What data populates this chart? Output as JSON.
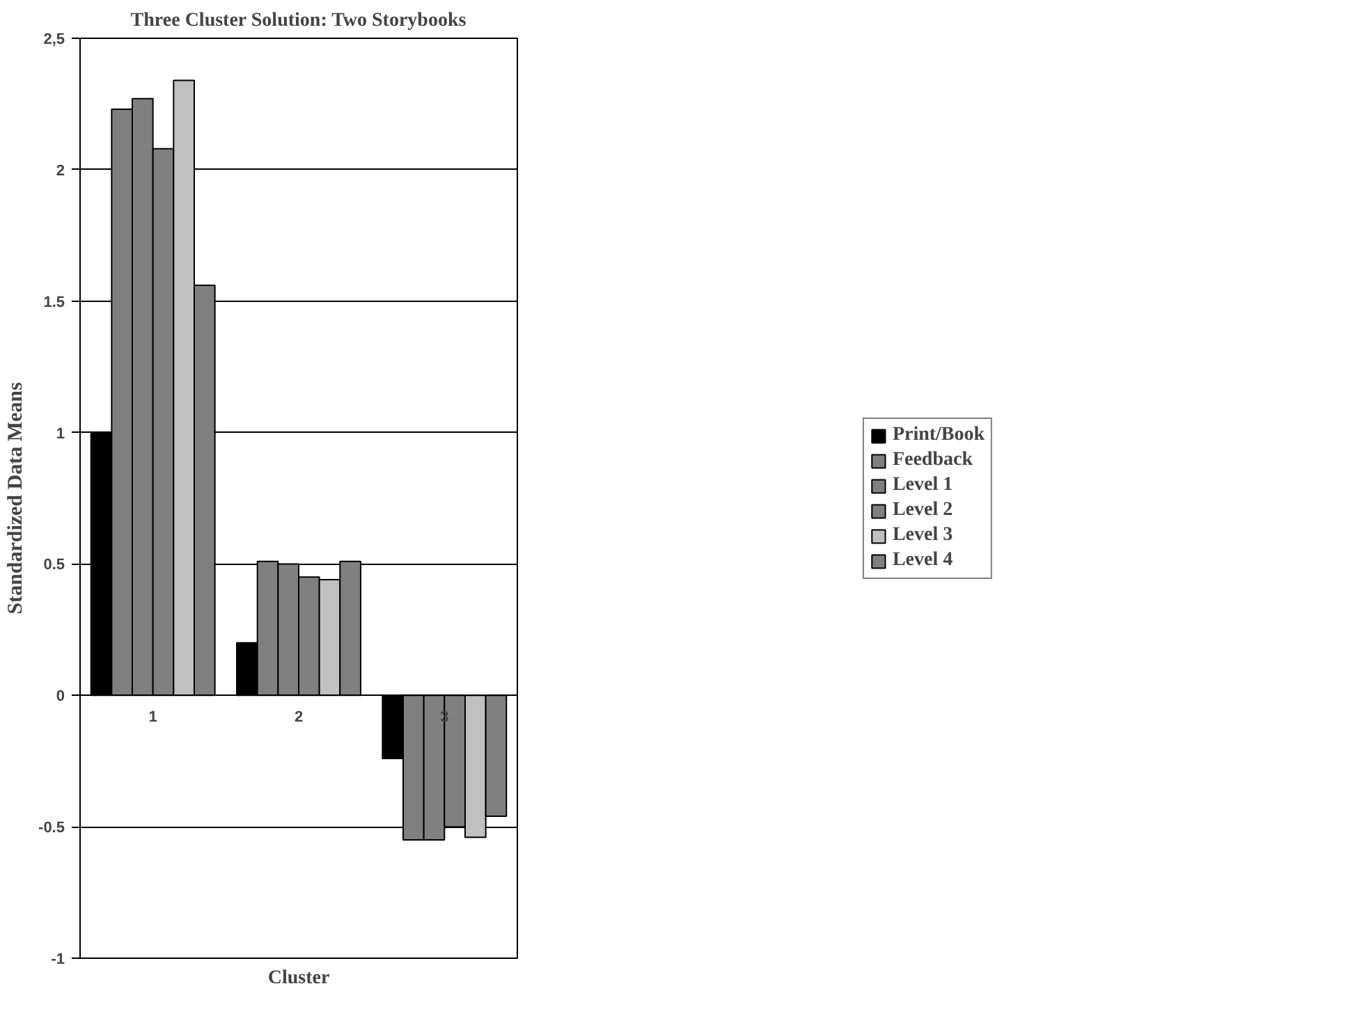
{
  "chart_data": {
    "type": "bar",
    "title": "Three Cluster Solution: Two Storybooks",
    "xlabel": "Cluster",
    "ylabel": "Standardized Data Means",
    "categories": [
      "1",
      "2",
      "3"
    ],
    "series": [
      {
        "name": "Print/Book",
        "color": "#000000",
        "values": [
          1.0,
          0.2,
          -0.24
        ]
      },
      {
        "name": "Feedback",
        "color": "#808080",
        "values": [
          2.23,
          0.51,
          -0.55
        ]
      },
      {
        "name": "Level 1",
        "color": "#808080",
        "values": [
          2.27,
          0.5,
          -0.55
        ]
      },
      {
        "name": "Level 2",
        "color": "#808080",
        "values": [
          2.08,
          0.45,
          -0.5
        ]
      },
      {
        "name": "Level 3",
        "color": "#c0c0c0",
        "values": [
          2.34,
          0.44,
          -0.54
        ]
      },
      {
        "name": "Level 4",
        "color": "#808080",
        "values": [
          1.56,
          0.51,
          -0.46
        ]
      }
    ],
    "ylim": [
      -1,
      2.5
    ],
    "yticks": [
      -1,
      {
        "value": -0.5,
        "label": "-0.5"
      },
      0,
      {
        "value": 0.5,
        "label": "0.5"
      },
      1,
      {
        "value": 1.5,
        "label": "1.5"
      },
      2,
      {
        "value": 2.5,
        "label": "2,5"
      }
    ],
    "grid": "y",
    "legend": "right"
  }
}
